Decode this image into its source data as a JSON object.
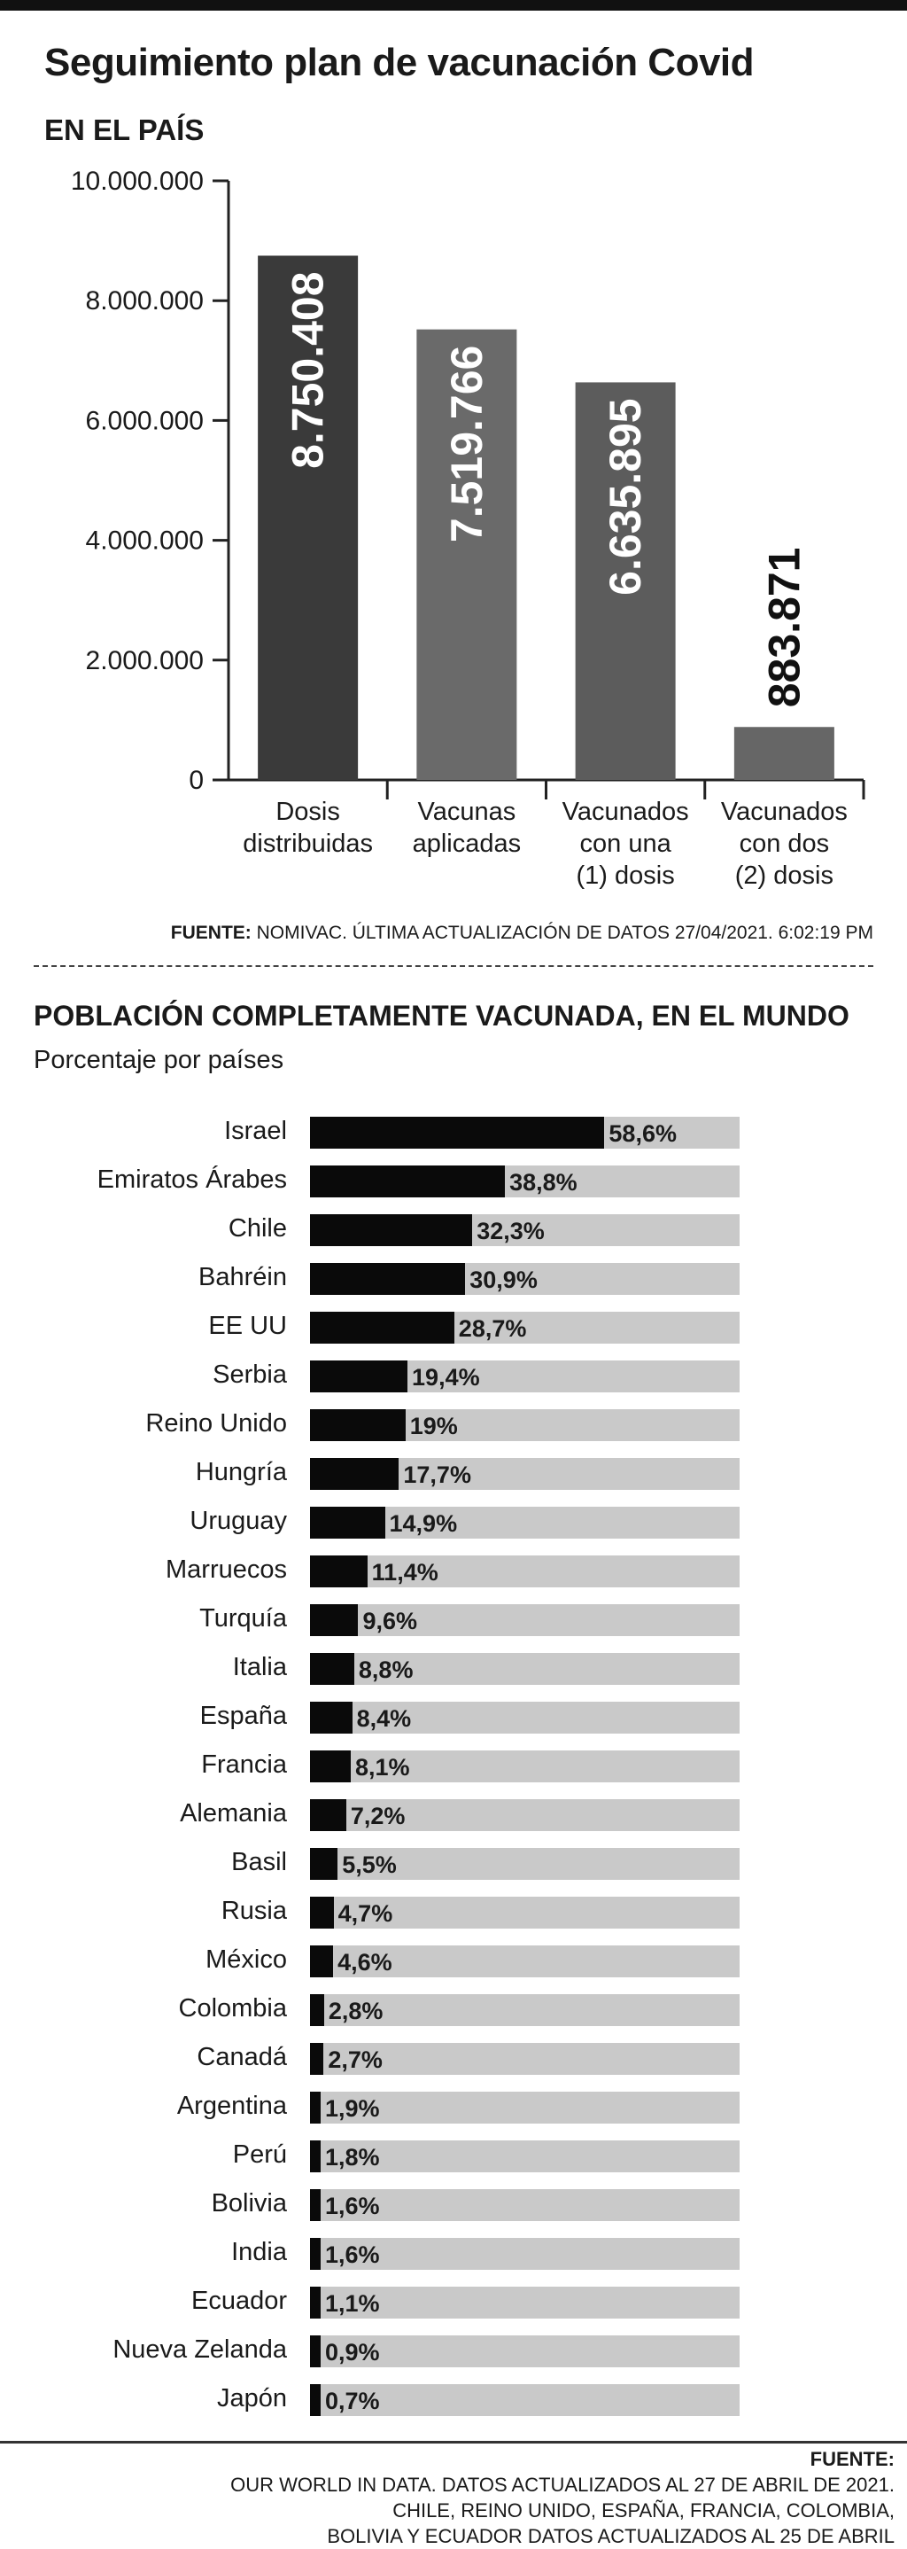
{
  "title": "Seguimiento plan de vacunación Covid",
  "section1": {
    "heading": "EN EL PAÍS",
    "source_label": "FUENTE:",
    "source_text": "NOMIVAC. ÚLTIMA ACTUALIZACIÓN DE DATOS 27/04/2021. 6:02:19 PM"
  },
  "section2": {
    "heading": "POBLACIÓN COMPLETAMENTE VACUNADA, EN EL MUNDO",
    "subtitle": "Porcentaje por países",
    "source_label": "FUENTE:",
    "source_lines": [
      "OUR WORLD IN DATA. DATOS ACTUALIZADOS AL 27 DE ABRIL DE 2021.",
      "CHILE, REINO UNIDO, ESPAÑA, FRANCIA, COLOMBIA,",
      "BOLIVIA Y ECUADOR DATOS ACTUALIZADOS AL 25 DE ABRIL"
    ]
  },
  "colors": {
    "bar1": "#3a3a3a",
    "bar2": "#6a6a6a",
    "bar3": "#5c5c5c",
    "bar4": "#666666",
    "hbar_fill": "#0a0a0a",
    "hbar_track": "#c9c9c9"
  },
  "chart_data": [
    {
      "type": "bar",
      "categories": [
        [
          "Dosis",
          "distribuidas"
        ],
        [
          "Vacunas",
          "aplicadas"
        ],
        [
          "Vacunados",
          "con una",
          "(1) dosis"
        ],
        [
          "Vacunados",
          "con dos",
          "(2) dosis"
        ]
      ],
      "values": [
        8750408,
        7519766,
        6635895,
        883871
      ],
      "value_labels": [
        "8.750.408",
        "7.519.766",
        "6.635.895",
        "883.871"
      ],
      "ylim": [
        0,
        10000000
      ],
      "yticks": [
        0,
        2000000,
        4000000,
        6000000,
        8000000,
        10000000
      ],
      "ytick_labels": [
        "0",
        "2.000.000",
        "4.000.000",
        "6.000.000",
        "8.000.000",
        "10.000.000"
      ],
      "xlabel": "",
      "ylabel": "",
      "grid": false
    },
    {
      "type": "bar",
      "orientation": "horizontal",
      "xlim": [
        0,
        100
      ],
      "categories": [
        "Israel",
        "Emiratos Árabes",
        "Chile",
        "Bahréin",
        "EE UU",
        "Serbia",
        "Reino Unido",
        "Hungría",
        "Uruguay",
        "Marruecos",
        "Turquía",
        "Italia",
        "España",
        "Francia",
        "Alemania",
        "Basil",
        "Rusia",
        "México",
        "Colombia",
        "Canadá",
        "Argentina",
        "Perú",
        "Bolivia",
        "India",
        "Ecuador",
        "Nueva Zelanda",
        "Japón"
      ],
      "values": [
        58.6,
        38.8,
        32.3,
        30.9,
        28.7,
        19.4,
        19,
        17.7,
        14.9,
        11.4,
        9.6,
        8.8,
        8.4,
        8.1,
        7.2,
        5.5,
        4.7,
        4.6,
        2.8,
        2.7,
        1.9,
        1.8,
        1.6,
        1.6,
        1.1,
        0.9,
        0.7
      ],
      "value_labels": [
        "58,6%",
        "38,8%",
        "32,3%",
        "30,9%",
        "28,7%",
        "19,4%",
        "19%",
        "17,7%",
        "14,9%",
        "11,4%",
        "9,6%",
        "8,8%",
        "8,4%",
        "8,1%",
        "7,2%",
        "5,5%",
        "4,7%",
        "4,6%",
        "2,8%",
        "2,7%",
        "1,9%",
        "1,8%",
        "1,6%",
        "1,6%",
        "1,1%",
        "0,9%",
        "0,7%"
      ],
      "grid": false
    }
  ]
}
